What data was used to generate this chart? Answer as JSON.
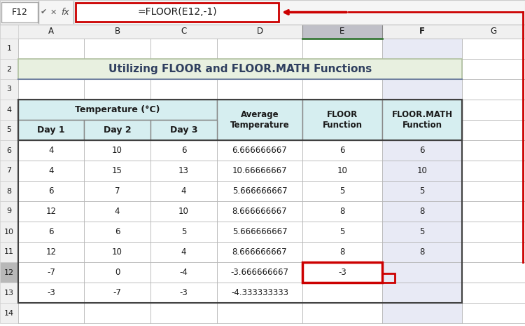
{
  "title": "Utilizing FLOOR and FLOOR.MATH Functions",
  "formula_bar_cell": "F12",
  "formula_bar_formula": "=FLOOR(E12,-1)",
  "col_headers": [
    "A",
    "B",
    "C",
    "D",
    "E",
    "F",
    "G"
  ],
  "data": [
    [
      4,
      10,
      6,
      "6.666666667",
      6,
      6
    ],
    [
      4,
      15,
      13,
      "10.66666667",
      10,
      10
    ],
    [
      6,
      7,
      4,
      "5.666666667",
      5,
      5
    ],
    [
      12,
      4,
      10,
      "8.666666667",
      8,
      8
    ],
    [
      6,
      6,
      5,
      "5.666666667",
      5,
      5
    ],
    [
      12,
      10,
      4,
      "8.666666667",
      8,
      8
    ],
    [
      -7,
      0,
      -4,
      "-3.666666667",
      -3,
      ""
    ],
    [
      -3,
      -7,
      -3,
      "-4.333333333",
      "",
      ""
    ]
  ],
  "title_bg": "#e8f0e0",
  "title_border_bottom": "#8896b0",
  "header_bg": "#d6eef0",
  "cell_bg": "#ffffff",
  "selected_col_bg": "#c0c0c8",
  "selected_row_bg": "#b8b8b8",
  "row_header_bg": "#f0f0f0",
  "col_header_bg": "#f0f0f0",
  "grid_color": "#b0b0b0",
  "outer_border": "#404040",
  "red": "#cc0000",
  "formula_bar_bg": "#f5f5f5",
  "dark_text": "#2f3f5f"
}
